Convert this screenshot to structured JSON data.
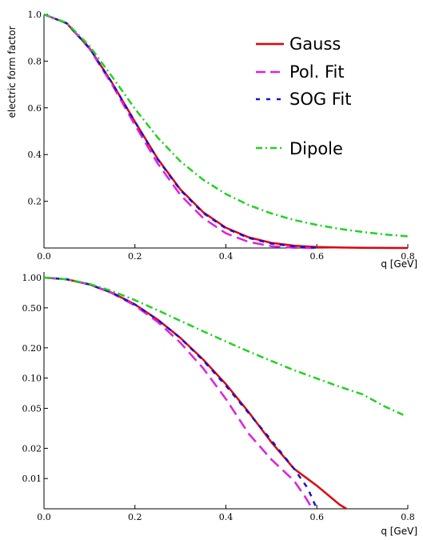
{
  "chart_data": [
    {
      "type": "line",
      "panel": "top",
      "scale_y": "linear",
      "xlabel": "q [GeV]",
      "ylabel": "electric form factor",
      "xlim": [
        0,
        0.8
      ],
      "ylim": [
        0,
        1.0
      ],
      "x_ticks": [
        0.0,
        0.2,
        0.4,
        0.6,
        0.8
      ],
      "x_tick_labels": [
        "0.0",
        "0.2",
        "0.4",
        "0.6",
        "0.8"
      ],
      "y_ticks": [
        0.2,
        0.4,
        0.6,
        0.8,
        1.0
      ],
      "y_tick_labels": [
        "0.2",
        "0.4",
        "0.6",
        "0.8",
        "1.0"
      ],
      "grid": false,
      "legend_position": "top-right",
      "series": [
        {
          "name": "Gauss",
          "color": "#e0000a",
          "dash": "solid",
          "x": [
            0,
            0.05,
            0.1,
            0.15,
            0.2,
            0.25,
            0.3,
            0.35,
            0.4,
            0.45,
            0.5,
            0.55,
            0.6,
            0.65,
            0.7,
            0.75,
            0.8
          ],
          "y": [
            1.0,
            0.962,
            0.856,
            0.706,
            0.54,
            0.382,
            0.251,
            0.153,
            0.087,
            0.046,
            0.022,
            0.01,
            0.004,
            0.002,
            0.001,
            0.0003,
            0.0001
          ]
        },
        {
          "name": "Pol. Fit",
          "color": "#e020e0",
          "dash": "long",
          "x": [
            0,
            0.05,
            0.1,
            0.15,
            0.2,
            0.25,
            0.3,
            0.35,
            0.4,
            0.45,
            0.5,
            0.55,
            0.6
          ],
          "y": [
            1.0,
            0.962,
            0.853,
            0.699,
            0.526,
            0.362,
            0.227,
            0.128,
            0.063,
            0.026,
            0.008,
            0.001,
            0.0
          ]
        },
        {
          "name": "SOG Fit",
          "color": "#1414d2",
          "dash": "short",
          "x": [
            0,
            0.05,
            0.1,
            0.15,
            0.2,
            0.25,
            0.3,
            0.35,
            0.4,
            0.45,
            0.5,
            0.55,
            0.6
          ],
          "y": [
            1.0,
            0.962,
            0.856,
            0.706,
            0.54,
            0.38,
            0.248,
            0.15,
            0.084,
            0.043,
            0.019,
            0.007,
            0.001
          ]
        },
        {
          "name": "Dipole",
          "color": "#20d420",
          "dash": "dashdot",
          "x": [
            0,
            0.05,
            0.1,
            0.15,
            0.2,
            0.25,
            0.3,
            0.35,
            0.4,
            0.45,
            0.5,
            0.55,
            0.6,
            0.65,
            0.7,
            0.75,
            0.8
          ],
          "y": [
            1.0,
            0.964,
            0.865,
            0.733,
            0.596,
            0.473,
            0.371,
            0.292,
            0.231,
            0.184,
            0.148,
            0.12,
            0.099,
            0.082,
            0.069,
            0.058,
            0.05
          ]
        }
      ]
    },
    {
      "type": "line",
      "panel": "bottom",
      "scale_y": "log",
      "xlabel": "q [GeV]",
      "ylabel": "",
      "xlim": [
        0,
        0.8
      ],
      "ylim": [
        0.005,
        1.0
      ],
      "x_ticks": [
        0.0,
        0.2,
        0.4,
        0.6,
        0.8
      ],
      "x_tick_labels": [
        "0.0",
        "0.2",
        "0.4",
        "0.6",
        "0.8"
      ],
      "y_ticks": [
        0.01,
        0.02,
        0.05,
        0.1,
        0.2,
        0.5,
        1.0
      ],
      "y_tick_labels": [
        "0.01",
        "0.02",
        "0.05",
        "0.10",
        "0.20",
        "0.50",
        "1.00"
      ],
      "grid": false,
      "series": [
        {
          "name": "Gauss",
          "color": "#e0000a",
          "dash": "solid",
          "x": [
            0,
            0.05,
            0.1,
            0.15,
            0.2,
            0.25,
            0.3,
            0.35,
            0.4,
            0.45,
            0.5,
            0.55,
            0.6,
            0.65,
            0.665
          ],
          "y": [
            1.0,
            0.962,
            0.856,
            0.706,
            0.54,
            0.382,
            0.251,
            0.153,
            0.087,
            0.046,
            0.023,
            0.0125,
            0.0085,
            0.0055,
            0.005
          ]
        },
        {
          "name": "Pol. Fit",
          "color": "#e020e0",
          "dash": "long",
          "x": [
            0,
            0.05,
            0.1,
            0.15,
            0.2,
            0.25,
            0.3,
            0.35,
            0.4,
            0.45,
            0.5,
            0.55,
            0.575,
            0.59
          ],
          "y": [
            1.0,
            0.962,
            0.853,
            0.699,
            0.526,
            0.362,
            0.225,
            0.125,
            0.062,
            0.028,
            0.0155,
            0.0095,
            0.0065,
            0.005
          ]
        },
        {
          "name": "SOG Fit",
          "color": "#1414d2",
          "dash": "short",
          "x": [
            0,
            0.05,
            0.1,
            0.15,
            0.2,
            0.25,
            0.3,
            0.35,
            0.4,
            0.45,
            0.5,
            0.55,
            0.58,
            0.6
          ],
          "y": [
            1.0,
            0.962,
            0.856,
            0.706,
            0.54,
            0.38,
            0.25,
            0.15,
            0.084,
            0.045,
            0.024,
            0.0125,
            0.008,
            0.005
          ]
        },
        {
          "name": "Dipole",
          "color": "#20d420",
          "dash": "dashdot",
          "x": [
            0,
            0.05,
            0.1,
            0.15,
            0.2,
            0.25,
            0.3,
            0.35,
            0.4,
            0.45,
            0.5,
            0.55,
            0.6,
            0.65,
            0.7,
            0.75,
            0.79
          ],
          "y": [
            1.0,
            0.964,
            0.865,
            0.733,
            0.596,
            0.473,
            0.371,
            0.292,
            0.231,
            0.184,
            0.148,
            0.12,
            0.099,
            0.082,
            0.069,
            0.052,
            0.043
          ]
        }
      ]
    }
  ]
}
